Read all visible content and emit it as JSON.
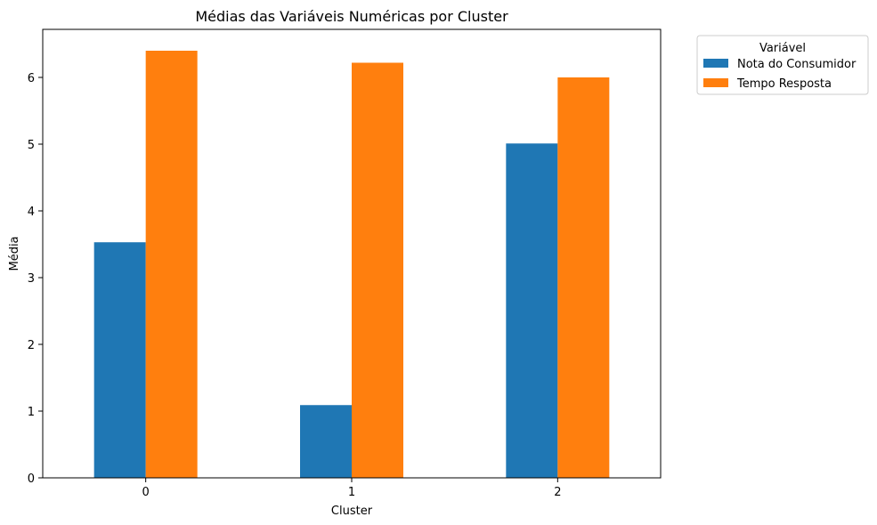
{
  "chart_data": {
    "type": "bar",
    "title": "Médias das Variáveis Numéricas por Cluster",
    "xlabel": "Cluster",
    "ylabel": "Média",
    "categories": [
      "0",
      "1",
      "2"
    ],
    "series": [
      {
        "name": "Nota do Consumidor",
        "values": [
          3.53,
          1.09,
          5.01
        ],
        "color": "#1f77b4"
      },
      {
        "name": "Tempo Resposta",
        "values": [
          6.4,
          6.22,
          6.0
        ],
        "color": "#ff7f0e"
      }
    ],
    "ylim": [
      0,
      6.72
    ],
    "yticks": [
      0,
      1,
      2,
      3,
      4,
      5,
      6
    ],
    "grid": false,
    "legend": {
      "title": "Variável",
      "placement": "outside-top-right"
    }
  }
}
